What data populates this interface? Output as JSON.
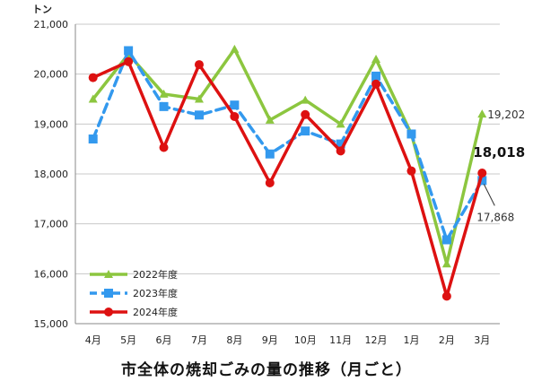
{
  "chart_data": {
    "type": "line",
    "title": "市全体の焼却ごみの量の推移（月ごと）",
    "y_unit": "トン",
    "xlabel": "",
    "ylabel": "",
    "ylim": [
      15000,
      21000
    ],
    "y_ticks": [
      "15,000",
      "16,000",
      "17,000",
      "18,000",
      "19,000",
      "20,000",
      "21,000"
    ],
    "y_tick_values": [
      15000,
      16000,
      17000,
      18000,
      19000,
      20000,
      21000
    ],
    "categories": [
      "4月",
      "5月",
      "6月",
      "7月",
      "8月",
      "9月",
      "10月",
      "11月",
      "12月",
      "1月",
      "2月",
      "3月"
    ],
    "grid": true,
    "legend_position": "bottom-left",
    "series": [
      {
        "name": "2022年度",
        "color": "#8cc63f",
        "marker": "triangle",
        "dash": "solid",
        "values": [
          19500,
          20400,
          19600,
          19500,
          20500,
          19080,
          19480,
          19000,
          20300,
          18800,
          16200,
          19202
        ]
      },
      {
        "name": "2023年度",
        "color": "#3399ee",
        "marker": "square",
        "dash": "dashed",
        "values": [
          18700,
          20470,
          19350,
          19180,
          19380,
          18400,
          18860,
          18600,
          19960,
          18800,
          16680,
          17868
        ]
      },
      {
        "name": "2024年度",
        "color": "#dd1111",
        "marker": "circle",
        "dash": "solid",
        "values": [
          19930,
          20250,
          18530,
          20190,
          19150,
          17820,
          19190,
          18460,
          19800,
          18060,
          15550,
          18018
        ]
      }
    ],
    "annotations": [
      {
        "text": "19,202",
        "series": "2022年度",
        "index": 11,
        "style": "normal"
      },
      {
        "text": "18,018",
        "series": "2024年度",
        "index": 11,
        "style": "bold"
      },
      {
        "text": "17,868",
        "series": "2023年度",
        "index": 11,
        "style": "normal"
      }
    ]
  }
}
